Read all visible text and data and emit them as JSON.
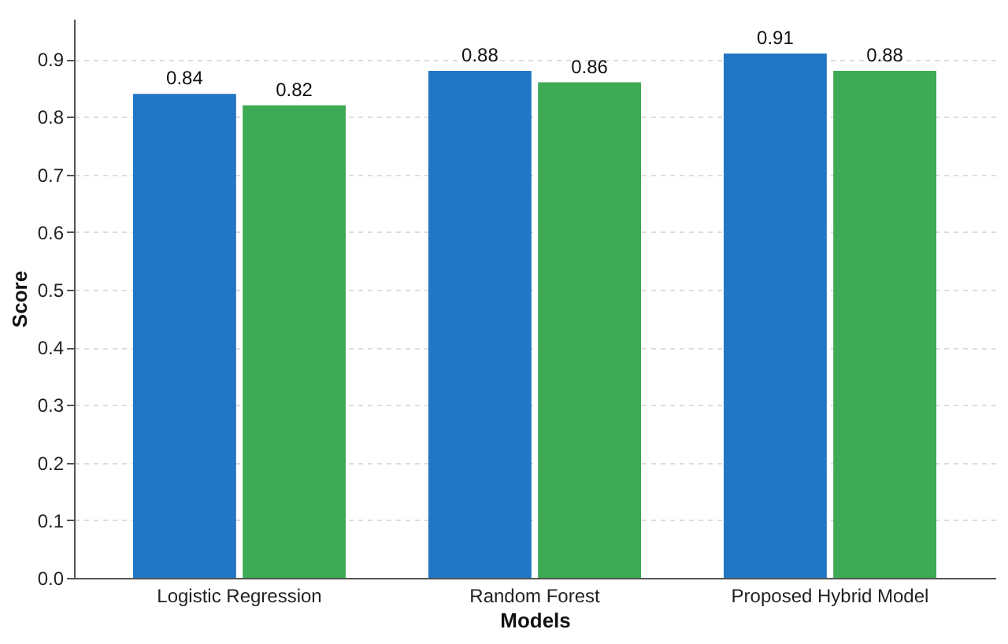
{
  "chart_data": {
    "type": "bar",
    "xlabel": "Models",
    "ylabel": "Score",
    "categories": [
      "Logistic Regression",
      "Random Forest",
      "Proposed Hybrid Model"
    ],
    "series": [
      {
        "color": "#2176c5",
        "values": [
          0.84,
          0.88,
          0.91
        ]
      },
      {
        "color": "#3faa55",
        "values": [
          0.82,
          0.86,
          0.88
        ]
      }
    ],
    "ylim": [
      0,
      0.97
    ],
    "yticks": [
      {
        "value": 0,
        "label": "0.0"
      },
      0.1,
      0.2,
      0.3,
      0.4,
      0.5,
      0.6,
      0.7,
      0.8,
      0.9
    ],
    "grid": "y",
    "data_labels": true,
    "legend": false
  }
}
